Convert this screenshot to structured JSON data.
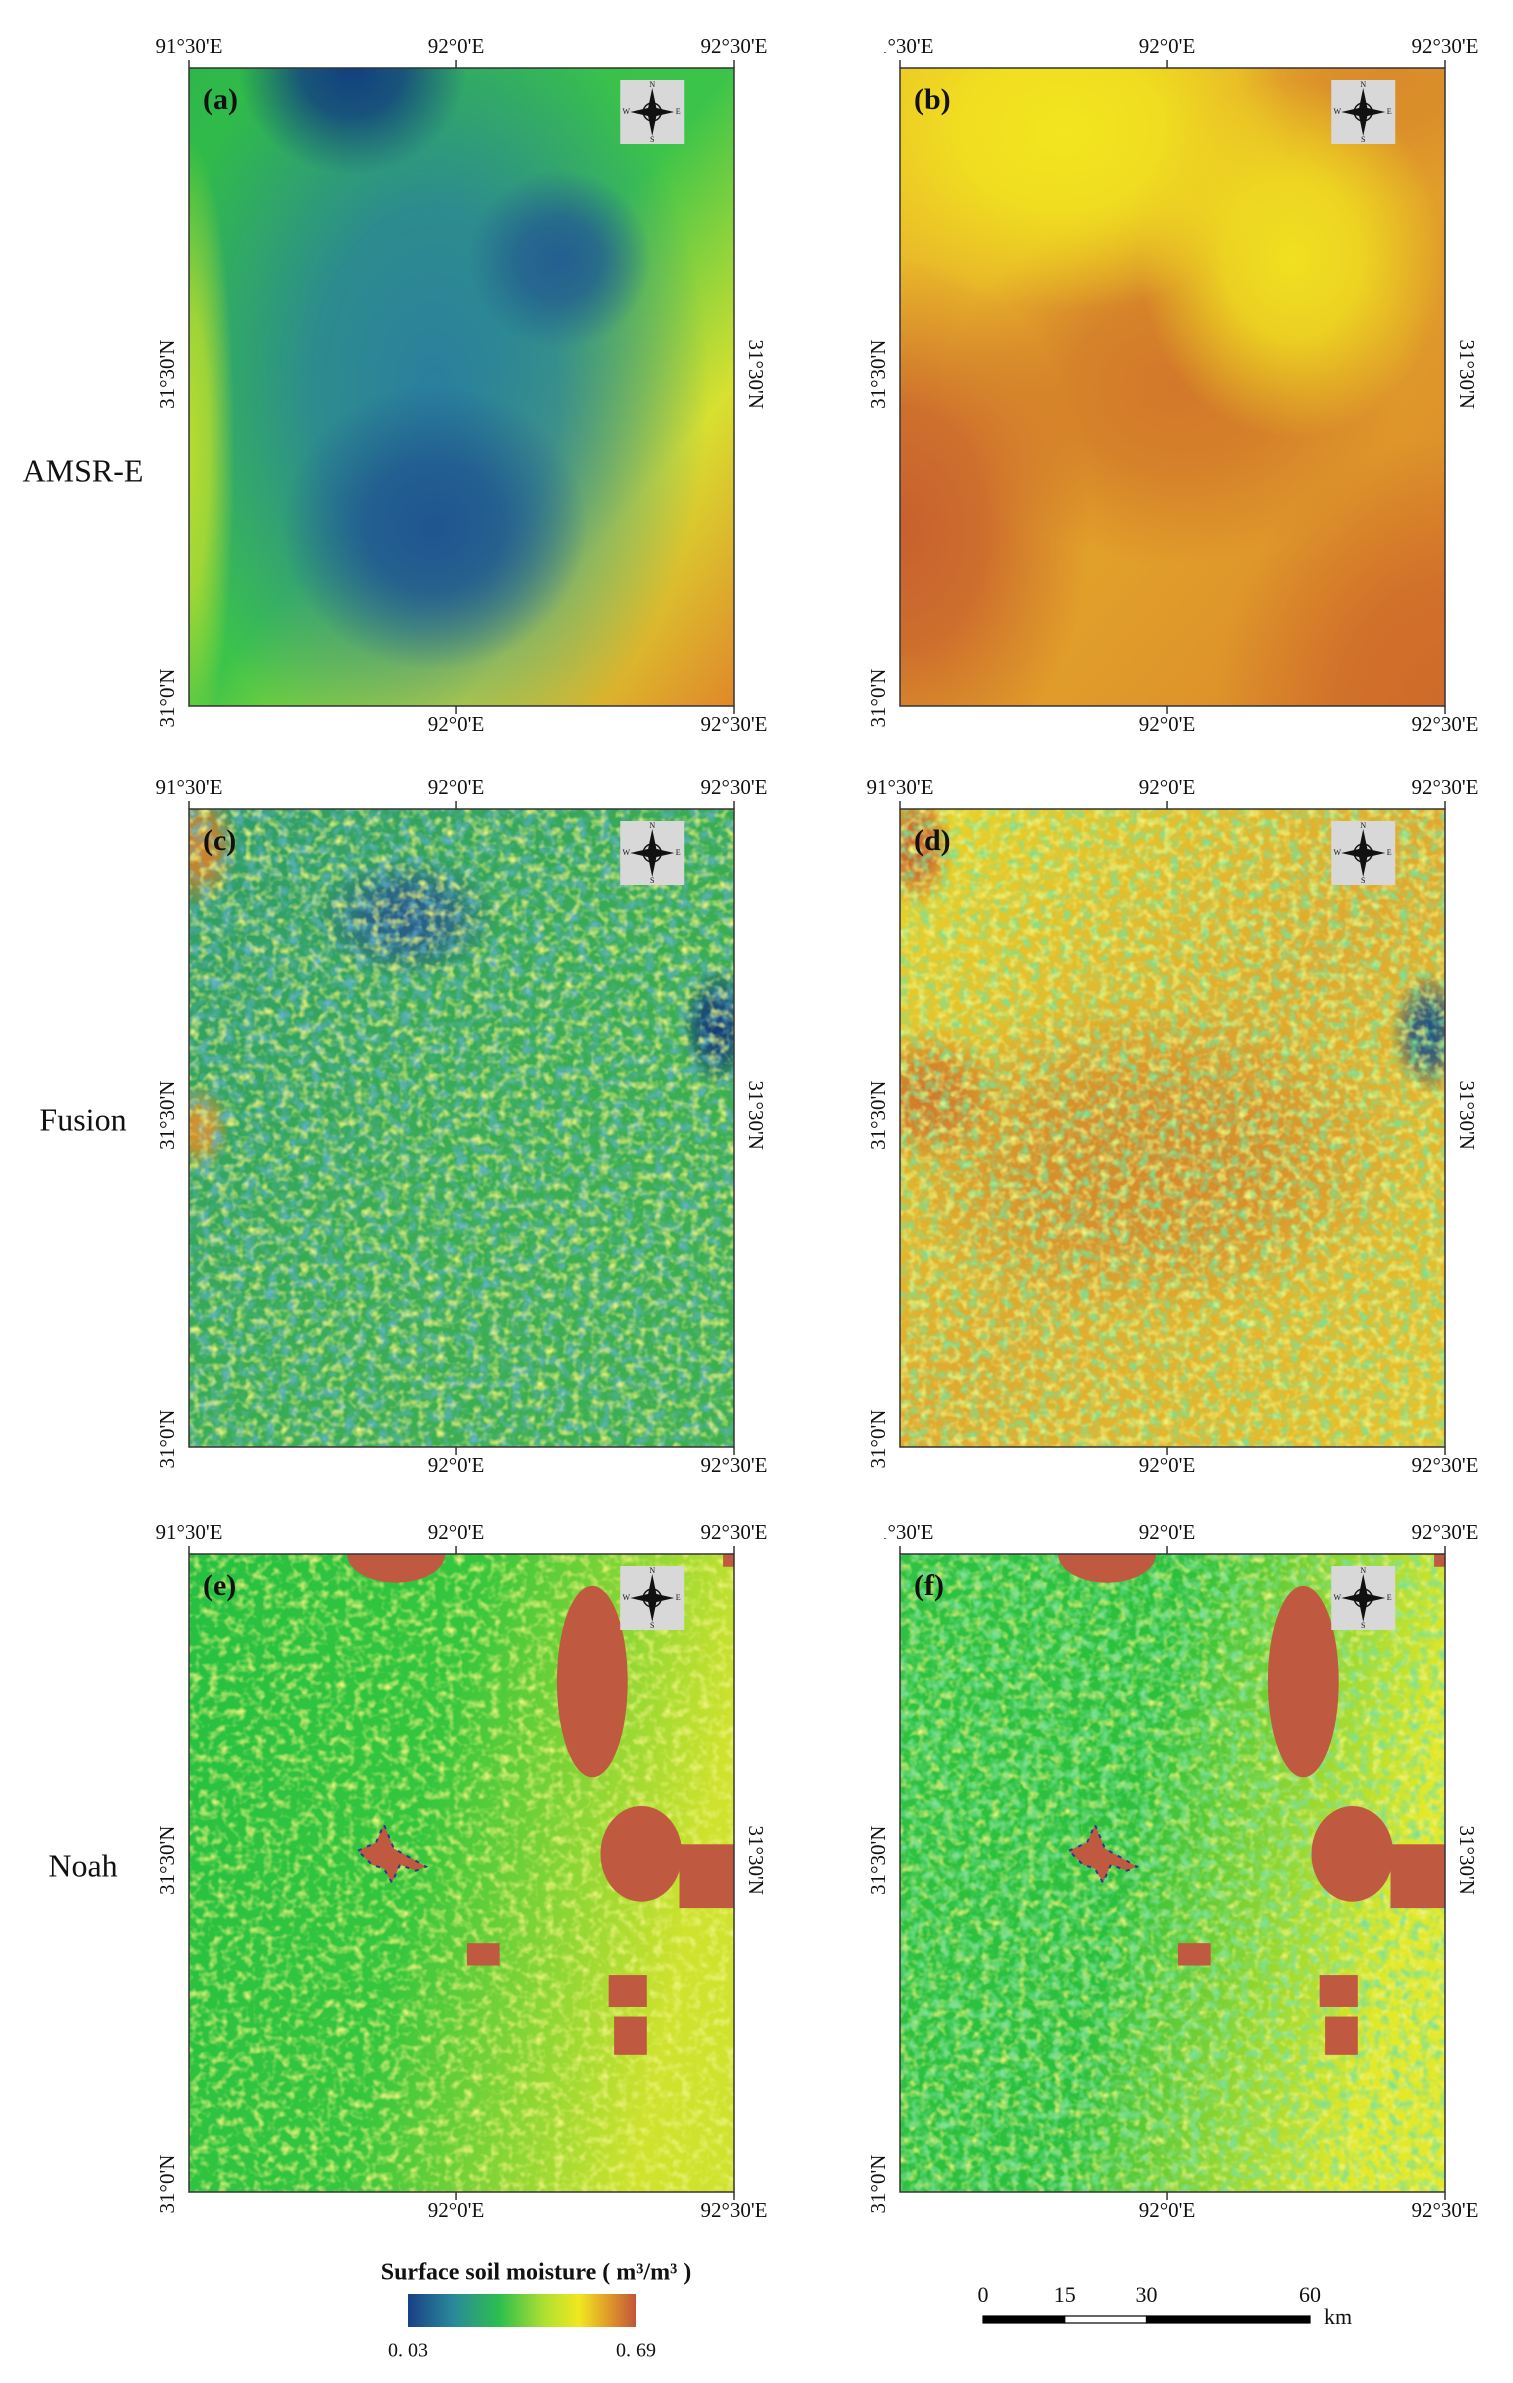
{
  "panels": [
    "(a)",
    "(b)",
    "(c)",
    "(d)",
    "(e)",
    "(f)"
  ],
  "rows": [
    "AMSR-E",
    "Fusion",
    "Noah"
  ],
  "lon_labels": [
    "91°30'E",
    "92°0'E",
    "92°30'E"
  ],
  "lat_labels": [
    "31°0'N",
    "31°30'N"
  ],
  "compass": [
    "N",
    "E",
    "S",
    "W"
  ],
  "legend": {
    "title": "Surface soil moisture ( m³/m³ )",
    "ticks": [
      {
        "value": 0.03,
        "label": "0. 03"
      },
      {
        "value": 0.69,
        "label": "0. 69"
      }
    ]
  },
  "scale_bar": {
    "ticks": [
      0,
      15,
      30,
      60
    ],
    "unit": "km"
  }
}
